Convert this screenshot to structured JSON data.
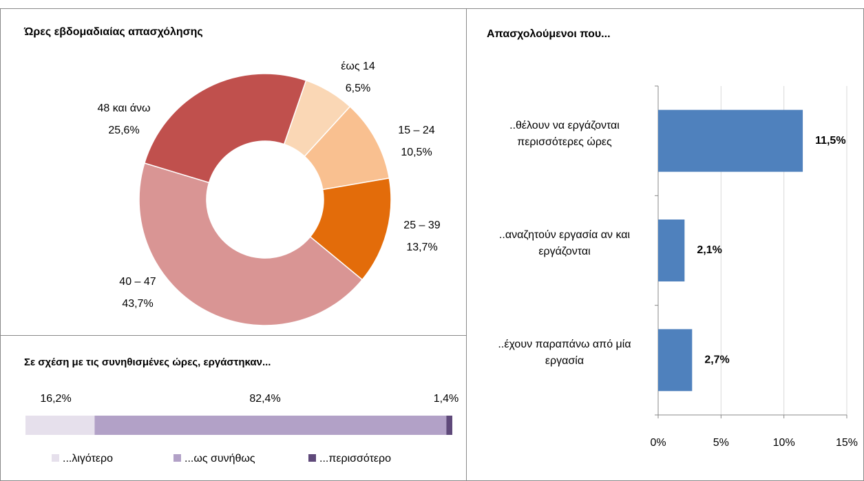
{
  "chart_data": [
    {
      "type": "donut",
      "title": "Ώρες εβδομαδιαίας απασχόλησης",
      "categories": [
        "έως 14",
        "15 – 24",
        "25 – 39",
        "40 – 47",
        "48 και άνω"
      ],
      "values": [
        6.5,
        10.5,
        13.7,
        43.7,
        25.6
      ],
      "value_labels": [
        "6,5%",
        "10,5%",
        "13,7%",
        "43,7%",
        "25,6%"
      ],
      "colors": [
        "#fad7b5",
        "#f9c090",
        "#e36c0a",
        "#d99594",
        "#c0504d"
      ]
    },
    {
      "type": "stacked-bar",
      "title": "Σε σχέση με τις συνηθισμένες ώρες, εργάστηκαν...",
      "series": [
        {
          "name": "...λιγότερο",
          "color": "#e6e0ec",
          "values": [
            16.2
          ],
          "value_labels": [
            "16,2%"
          ]
        },
        {
          "name": "...ως συνήθως",
          "color": "#b2a1c7",
          "values": [
            82.4
          ],
          "value_labels": [
            "82,4%"
          ]
        },
        {
          "name": "...περισσότερο",
          "color": "#5f497a",
          "values": [
            1.4
          ],
          "value_labels": [
            "1,4%"
          ]
        }
      ],
      "legend": "bottom"
    },
    {
      "type": "hbar",
      "title": "Απασχολούμενοι που...",
      "categories": [
        "..θέλουν να εργάζονται περισσότερες ώρες",
        "..αναζητούν εργασία αν και εργάζονται",
        "..έχουν παραπάνω από μία εργασία"
      ],
      "values": [
        11.5,
        2.1,
        2.7
      ],
      "value_labels": [
        "11,5%",
        "2,1%",
        "2,7%"
      ],
      "color": "#4f81bd",
      "xlim": [
        0,
        15
      ],
      "xticks": [
        {
          "value": 0,
          "label": "0%"
        },
        {
          "value": 5,
          "label": "5%"
        },
        {
          "value": 10,
          "label": "10%"
        },
        {
          "value": 15,
          "label": "15%"
        }
      ],
      "grid": true
    }
  ]
}
